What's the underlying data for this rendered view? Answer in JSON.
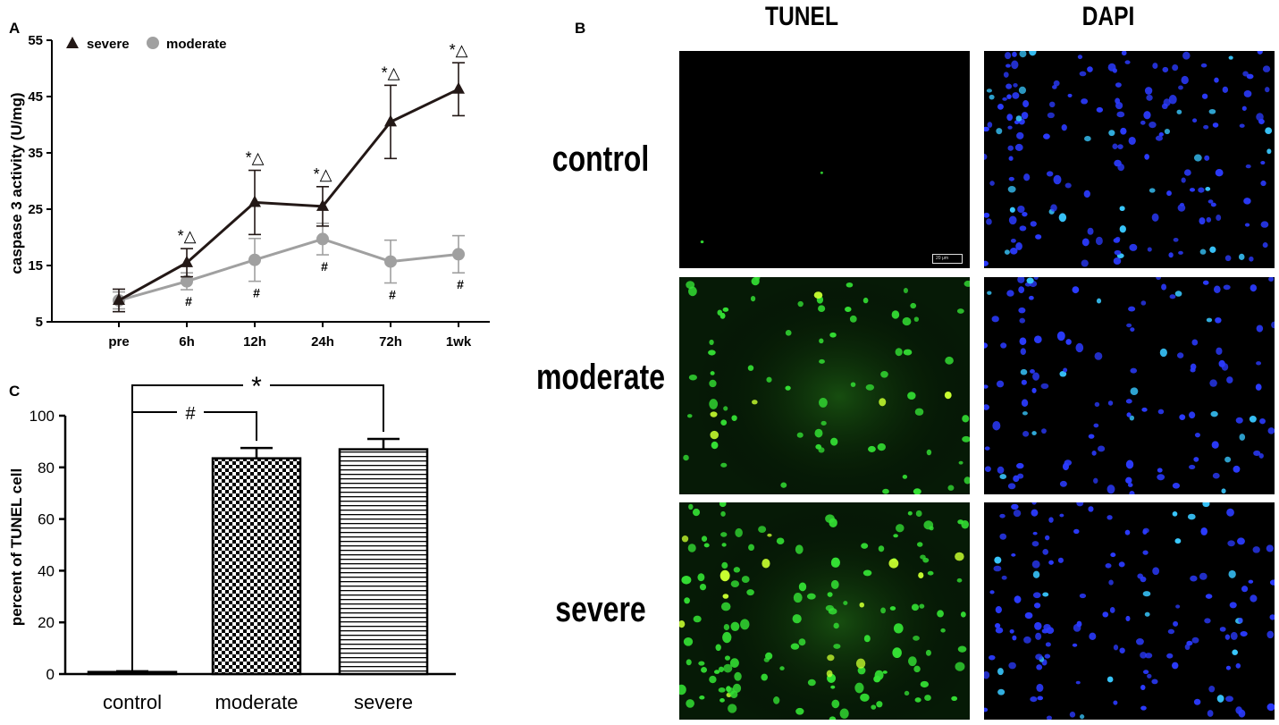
{
  "panels": {
    "a": "A",
    "b": "B",
    "c": "C"
  },
  "chart_data": [
    {
      "type": "line",
      "x": [
        "pre",
        "6h",
        "12h",
        "24h",
        "72h",
        "1wk"
      ],
      "ylabel": "caspase 3 activity (U/mg)",
      "xlabel": "",
      "ylim": [
        5,
        55
      ],
      "yticks": [
        5,
        15,
        25,
        35,
        45,
        55
      ],
      "legend": "top-left",
      "series": [
        {
          "name": "severe",
          "color": "#231816",
          "marker": "triangle",
          "values": [
            8.8,
            15.5,
            26.2,
            25.5,
            40.5,
            46.3
          ],
          "error": [
            2.0,
            2.5,
            5.7,
            3.5,
            6.5,
            4.7
          ],
          "annotations": [
            "",
            "*△",
            "*△",
            "*△",
            "*△",
            "*△"
          ]
        },
        {
          "name": "moderate",
          "color": "#a0a0a0",
          "marker": "circle",
          "values": [
            8.8,
            12.2,
            16.0,
            19.7,
            15.7,
            17.0
          ],
          "error": [
            1.5,
            1.5,
            3.8,
            2.8,
            3.8,
            3.3
          ],
          "annotations": [
            "",
            "#",
            "#",
            "#",
            "#",
            "#"
          ]
        }
      ]
    },
    {
      "type": "bar",
      "categories": [
        "control",
        "moderate",
        "severe"
      ],
      "values": [
        0.8,
        83.5,
        87.0
      ],
      "error": [
        0.3,
        4.0,
        4.0
      ],
      "patterns": [
        "solid",
        "checker",
        "hstripes"
      ],
      "ylabel": "percent of TUNEL cell",
      "xlabel": "",
      "ylim": [
        0,
        100
      ],
      "yticks": [
        0,
        20,
        40,
        60,
        80,
        100
      ],
      "significance": [
        {
          "from": "control",
          "to": "moderate",
          "label": "#"
        },
        {
          "from": "control",
          "to": "severe",
          "label": "*"
        }
      ]
    }
  ],
  "microscopy": {
    "columns": [
      "TUNEL",
      "DAPI"
    ],
    "rows": [
      "control",
      "moderate",
      "severe"
    ],
    "scale_bar": "20 μm",
    "colors": {
      "tunel": "#34e034",
      "dapi": "#2b3bff",
      "background": "#000000"
    }
  }
}
